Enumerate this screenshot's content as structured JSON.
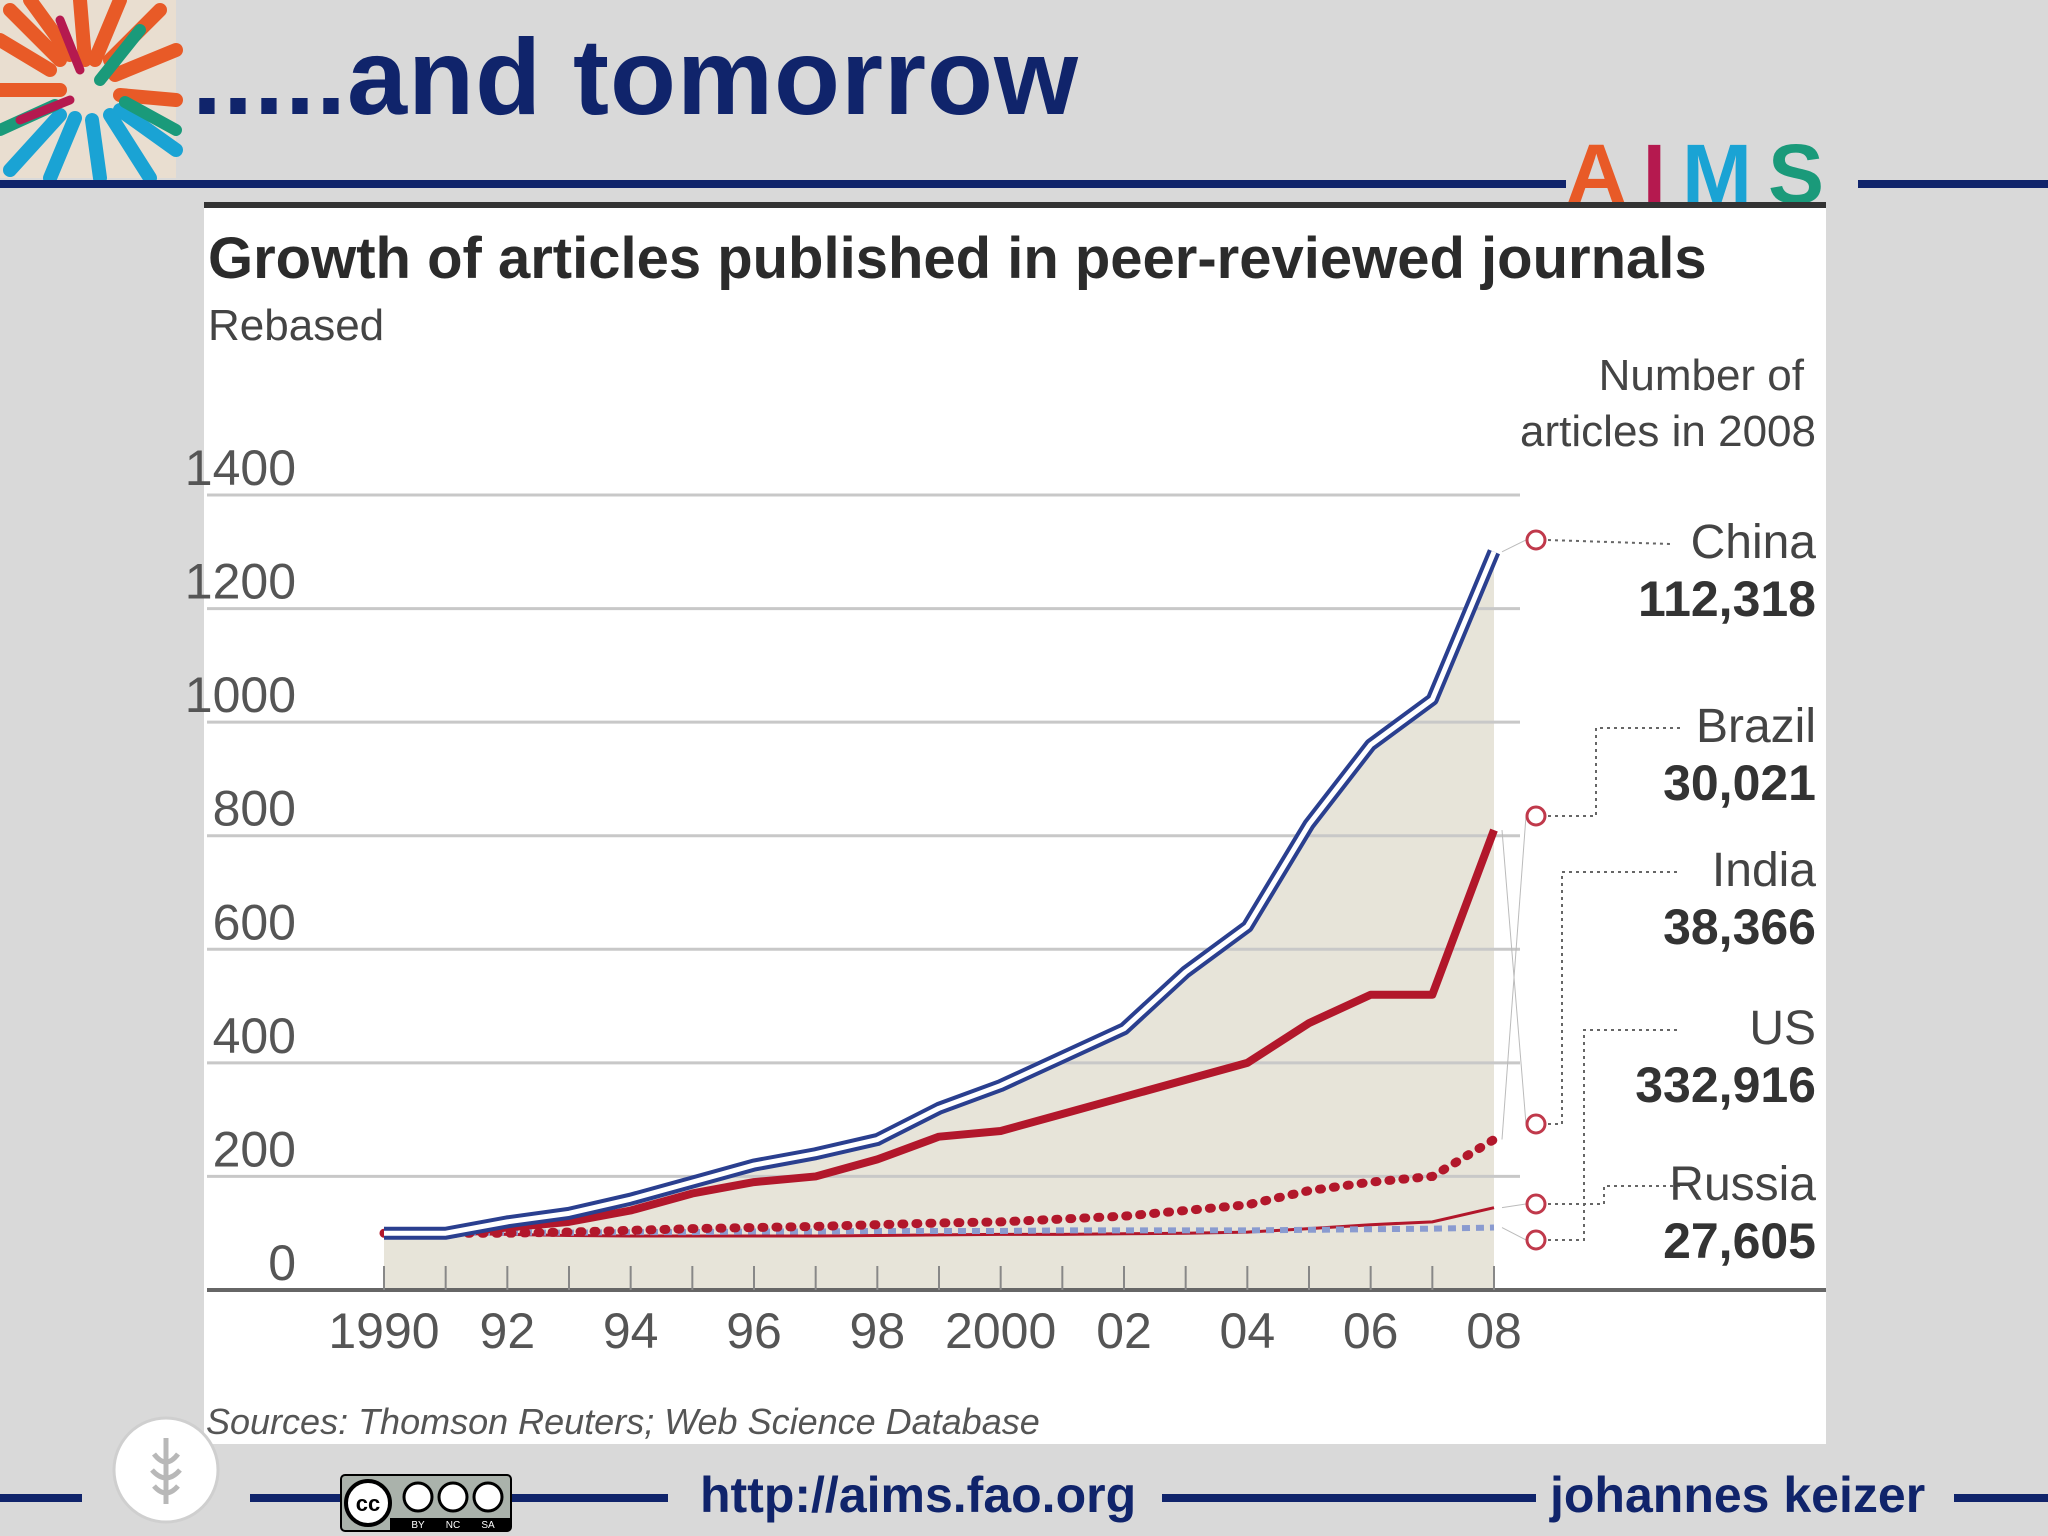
{
  "slide": {
    "title": ".....and tomorrow",
    "footer_url": "http://aims.fao.org",
    "footer_author": "johannes keizer"
  },
  "aims_logo": {
    "letters": [
      "A",
      "I",
      "M",
      "S"
    ],
    "colors": [
      "#e85a27",
      "#b5194f",
      "#1aa3d4",
      "#1a9a7a"
    ]
  },
  "colors": {
    "brand_navy": "#10246b",
    "china_line": "#2a3f8f",
    "india_line": "#b2172b",
    "area_fill": "#e7e4d9",
    "gridline": "#c8c8c8"
  },
  "chart_data": {
    "type": "line",
    "title": "Growth of articles published in peer-reviewed journals",
    "subtitle": "Rebased",
    "legend_heading": [
      "Number of",
      "articles in 2008"
    ],
    "source": "Sources: Thomson Reuters; Web Science Database",
    "x": [
      1990,
      1991,
      1992,
      1993,
      1994,
      1995,
      1996,
      1997,
      1998,
      1999,
      2000,
      2001,
      2002,
      2003,
      2004,
      2005,
      2006,
      2007,
      2008
    ],
    "x_tick_labels": [
      "1990",
      "92",
      "94",
      "96",
      "98",
      "2000",
      "02",
      "04",
      "06",
      "08"
    ],
    "x_tick_years": [
      1990,
      1992,
      1994,
      1996,
      1998,
      2000,
      2002,
      2004,
      2006,
      2008
    ],
    "y_ticks": [
      0,
      200,
      400,
      600,
      800,
      1000,
      1200,
      1400
    ],
    "ylim": [
      0,
      1400
    ],
    "grid": true,
    "series": [
      {
        "name": "China",
        "count": "112,318",
        "style": "double",
        "fill_area": true,
        "values": [
          100,
          100,
          120,
          135,
          160,
          190,
          220,
          240,
          265,
          320,
          360,
          410,
          460,
          560,
          640,
          820,
          960,
          1040,
          1300
        ]
      },
      {
        "name": "Brazil",
        "count": "30,021",
        "style": "dotted",
        "values": [
          100,
          100,
          100,
          102,
          105,
          108,
          110,
          112,
          115,
          118,
          120,
          125,
          130,
          140,
          150,
          175,
          190,
          200,
          265
        ]
      },
      {
        "name": "India",
        "count": "38,366",
        "style": "solid",
        "values": [
          100,
          100,
          110,
          120,
          140,
          170,
          190,
          200,
          230,
          270,
          280,
          310,
          340,
          370,
          400,
          470,
          520,
          520,
          810
        ]
      },
      {
        "name": "US",
        "count": "332,916",
        "style": "dashed",
        "values": [
          100,
          100,
          101,
          101,
          102,
          102,
          103,
          103,
          104,
          104,
          104,
          105,
          105,
          105,
          105,
          106,
          107,
          108,
          110
        ]
      },
      {
        "name": "Russia",
        "count": "27,605",
        "style": "thin",
        "values": [
          100,
          100,
          98,
          96,
          95,
          95,
          95,
          95,
          96,
          97,
          98,
          98,
          99,
          100,
          102,
          108,
          115,
          120,
          145
        ]
      }
    ]
  }
}
